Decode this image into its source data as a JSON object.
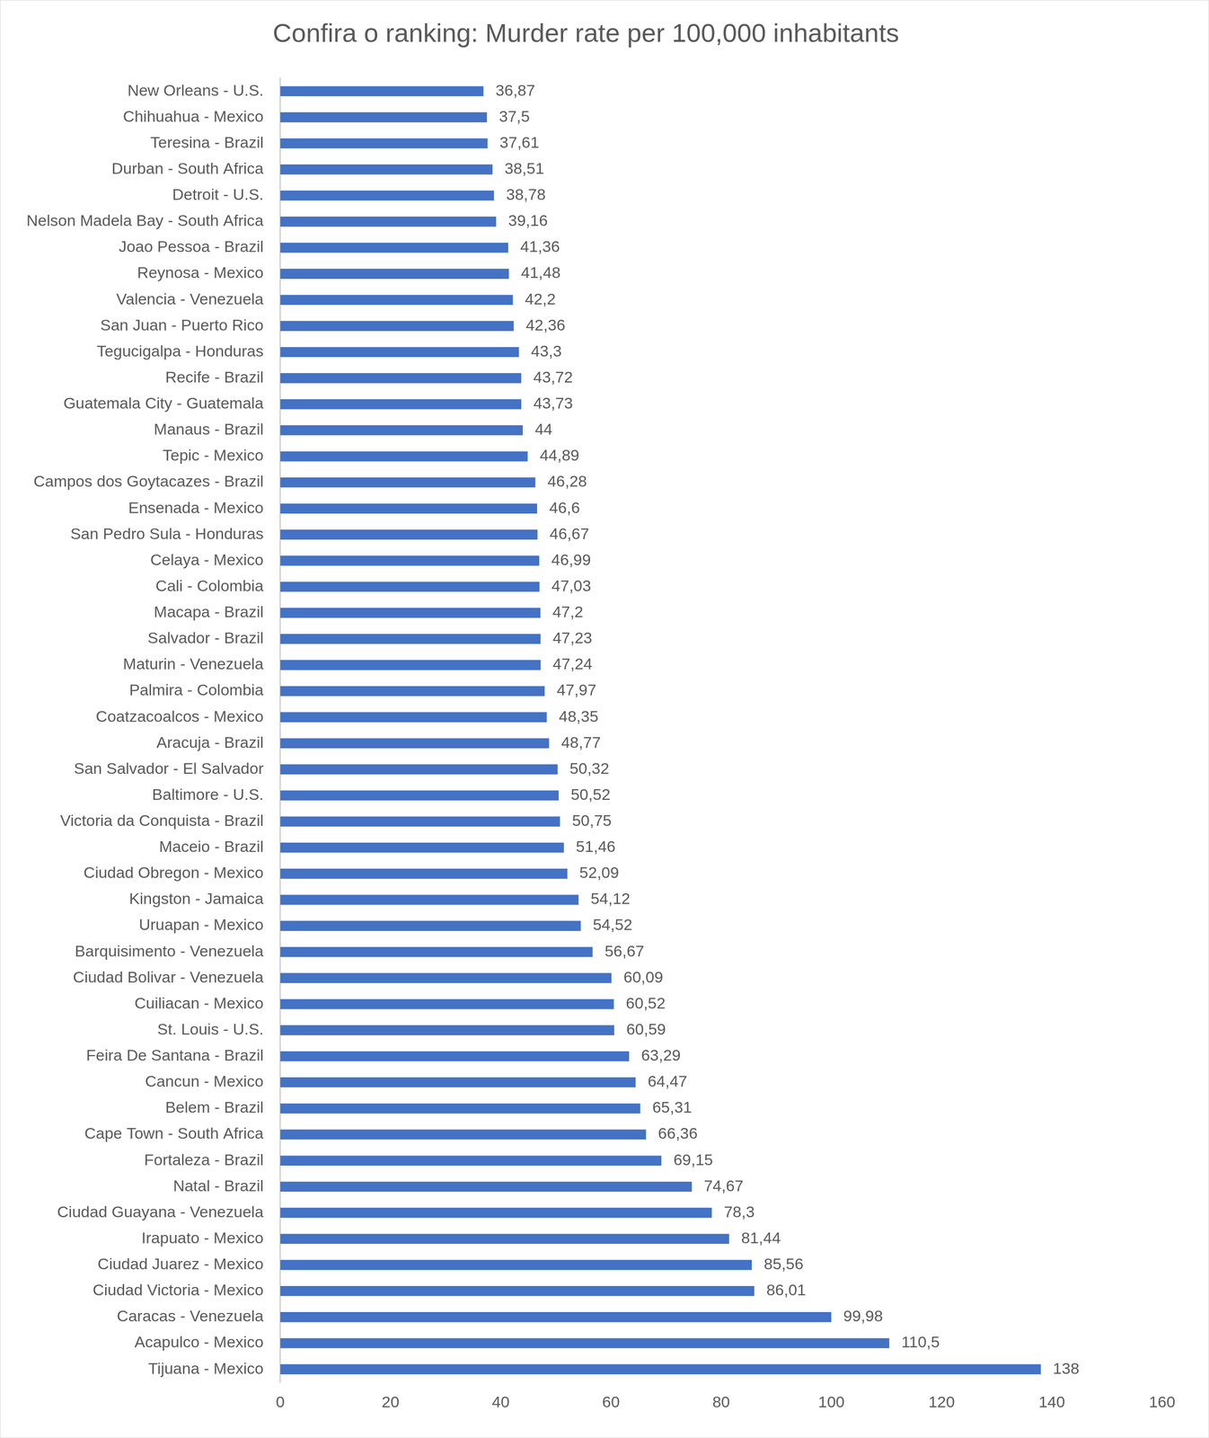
{
  "chart_data": {
    "type": "bar",
    "orientation": "horizontal",
    "title": "Confira o ranking: Murder rate per 100,000 inhabitants",
    "categories": [
      "New Orleans - U.S.",
      "Chihuahua - Mexico",
      "Teresina - Brazil",
      "Durban - South Africa",
      "Detroit - U.S.",
      "Nelson Madela Bay - South Africa",
      "Joao Pessoa - Brazil",
      "Reynosa - Mexico",
      "Valencia - Venezuela",
      "San Juan - Puerto Rico",
      "Tegucigalpa - Honduras",
      "Recife - Brazil",
      "Guatemala City - Guatemala",
      "Manaus - Brazil",
      "Tepic - Mexico",
      "Campos dos Goytacazes - Brazil",
      "Ensenada - Mexico",
      "San Pedro Sula - Honduras",
      "Celaya - Mexico",
      "Cali - Colombia",
      "Macapa - Brazil",
      "Salvador - Brazil",
      "Maturin - Venezuela",
      "Palmira - Colombia",
      "Coatzacoalcos - Mexico",
      "Aracuja - Brazil",
      "San Salvador - El Salvador",
      "Baltimore - U.S.",
      "Victoria da Conquista - Brazil",
      "Maceio - Brazil",
      "Ciudad Obregon - Mexico",
      "Kingston - Jamaica",
      "Uruapan - Mexico",
      "Barquisimento - Venezuela",
      "Ciudad Bolivar - Venezuela",
      "Cuiliacan - Mexico",
      "St. Louis - U.S.",
      "Feira De Santana - Brazil",
      "Cancun - Mexico",
      "Belem - Brazil",
      "Cape Town - South Africa",
      "Fortaleza - Brazil",
      "Natal - Brazil",
      "Ciudad Guayana - Venezuela",
      "Irapuato - Mexico",
      "Ciudad Juarez - Mexico",
      "Ciudad Victoria - Mexico",
      "Caracas - Venezuela",
      "Acapulco - Mexico",
      "Tijuana - Mexico"
    ],
    "values": [
      36.87,
      37.5,
      37.61,
      38.51,
      38.78,
      39.16,
      41.36,
      41.48,
      42.2,
      42.36,
      43.3,
      43.72,
      43.73,
      44,
      44.89,
      46.28,
      46.6,
      46.67,
      46.99,
      47.03,
      47.2,
      47.23,
      47.24,
      47.97,
      48.35,
      48.77,
      50.32,
      50.52,
      50.75,
      51.46,
      52.09,
      54.12,
      54.52,
      56.67,
      60.09,
      60.52,
      60.59,
      63.29,
      64.47,
      65.31,
      66.36,
      69.15,
      74.67,
      78.3,
      81.44,
      85.56,
      86.01,
      99.98,
      110.5,
      138
    ],
    "value_labels": [
      "36,87",
      "37,5",
      "37,61",
      "38,51",
      "38,78",
      "39,16",
      "41,36",
      "41,48",
      "42,2",
      "42,36",
      "43,3",
      "43,72",
      "43,73",
      "44",
      "44,89",
      "46,28",
      "46,6",
      "46,67",
      "46,99",
      "47,03",
      "47,2",
      "47,23",
      "47,24",
      "47,97",
      "48,35",
      "48,77",
      "50,32",
      "50,52",
      "50,75",
      "51,46",
      "52,09",
      "54,12",
      "54,52",
      "56,67",
      "60,09",
      "60,52",
      "60,59",
      "63,29",
      "64,47",
      "65,31",
      "66,36",
      "69,15",
      "74,67",
      "78,3",
      "81,44",
      "85,56",
      "86,01",
      "99,98",
      "110,5",
      "138"
    ],
    "color": "#4472c4",
    "xlim": [
      0,
      160
    ],
    "xticks": [
      0,
      20,
      40,
      60,
      80,
      100,
      120,
      140,
      160
    ],
    "grid": false,
    "data_labels": true
  }
}
